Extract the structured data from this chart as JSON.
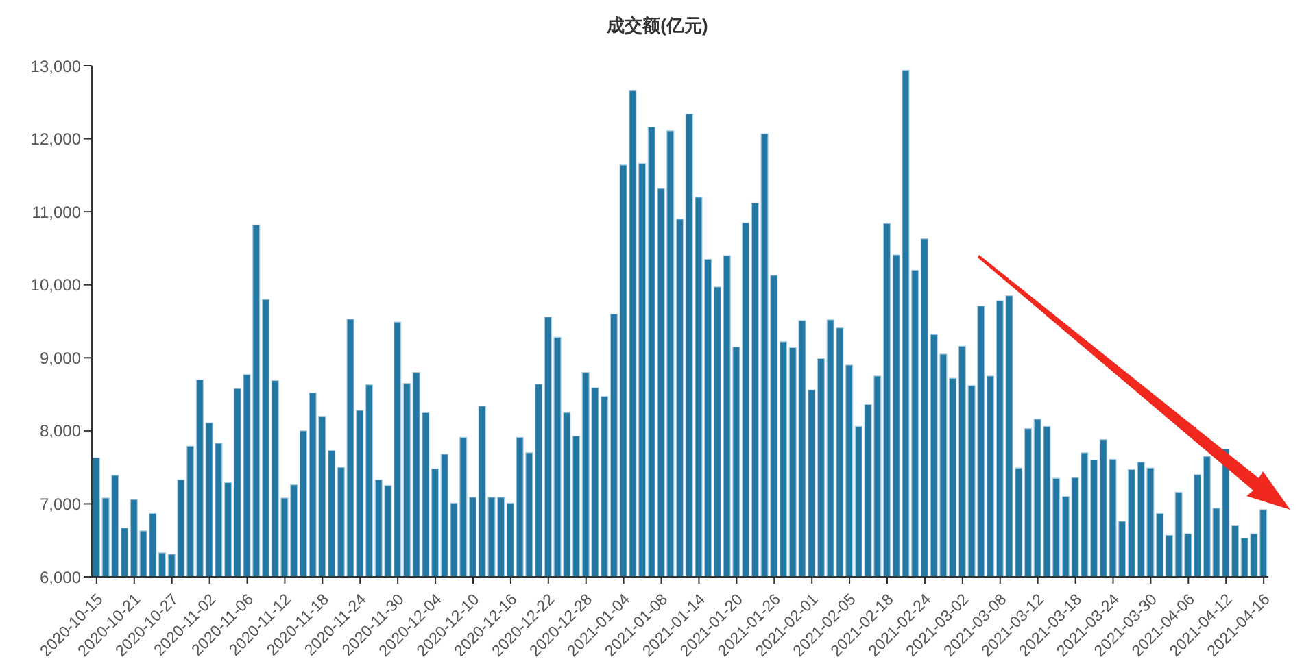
{
  "chart_data": {
    "type": "bar",
    "title": "成交额(亿元)",
    "categories": [
      "2020-10-15",
      null,
      null,
      null,
      "2020-10-21",
      null,
      null,
      null,
      "2020-10-27",
      null,
      null,
      null,
      "2020-11-02",
      null,
      null,
      null,
      "2020-11-06",
      null,
      null,
      null,
      "2020-11-12",
      null,
      null,
      null,
      "2020-11-18",
      null,
      null,
      null,
      "2020-11-24",
      null,
      null,
      null,
      "2020-11-30",
      null,
      null,
      null,
      "2020-12-04",
      null,
      null,
      null,
      "2020-12-10",
      null,
      null,
      null,
      "2020-12-16",
      null,
      null,
      null,
      "2020-12-22",
      null,
      null,
      null,
      "2020-12-28",
      null,
      null,
      null,
      "2021-01-04",
      null,
      null,
      null,
      "2021-01-08",
      null,
      null,
      null,
      "2021-01-14",
      null,
      null,
      null,
      "2021-01-20",
      null,
      null,
      null,
      "2021-01-26",
      null,
      null,
      null,
      "2021-02-01",
      null,
      null,
      null,
      "2021-02-05",
      null,
      null,
      null,
      "2021-02-18",
      null,
      null,
      null,
      "2021-02-24",
      null,
      null,
      null,
      "2021-03-02",
      null,
      null,
      null,
      "2021-03-08",
      null,
      null,
      null,
      "2021-03-12",
      null,
      null,
      null,
      "2021-03-18",
      null,
      null,
      null,
      "2021-03-24",
      null,
      null,
      null,
      "2021-03-30",
      null,
      null,
      null,
      "2021-04-06",
      null,
      null,
      null,
      "2021-04-12",
      null,
      null,
      null,
      "2021-04-16"
    ],
    "values": [
      7630,
      7080,
      7390,
      6670,
      7060,
      6630,
      6870,
      6330,
      6310,
      7330,
      7790,
      8700,
      8110,
      7830,
      7290,
      8580,
      8770,
      10820,
      9800,
      8690,
      7080,
      7260,
      8000,
      8520,
      8200,
      7730,
      7500,
      9530,
      8280,
      8630,
      7330,
      7250,
      9490,
      8650,
      8800,
      8250,
      7480,
      7680,
      7010,
      7910,
      7090,
      8340,
      7090,
      7090,
      7010,
      7910,
      7700,
      8640,
      9560,
      9280,
      8250,
      7930,
      8800,
      8590,
      8470,
      9600,
      11640,
      12660,
      11660,
      12160,
      11320,
      12110,
      10900,
      12340,
      11200,
      10350,
      9970,
      10400,
      9150,
      10850,
      11120,
      12070,
      10130,
      9220,
      9140,
      9510,
      8560,
      8990,
      9520,
      9410,
      8900,
      8060,
      8360,
      8750,
      10840,
      10410,
      12940,
      10200,
      10630,
      9320,
      9050,
      8720,
      9160,
      8620,
      9710,
      8750,
      9780,
      9850,
      7490,
      8030,
      8160,
      8060,
      7350,
      7100,
      7360,
      7700,
      7600,
      7880,
      7610,
      6760,
      7470,
      7570,
      7490,
      6870,
      6570,
      7160,
      6590,
      7400,
      7650,
      6940,
      7750,
      6700,
      6530,
      6590,
      6920
    ],
    "color": "#2278a3",
    "ylim": [
      6000,
      13000
    ],
    "yticks": [
      {
        "value": 6000,
        "label": "6,000"
      },
      {
        "value": 7000,
        "label": "7,000"
      },
      {
        "value": 8000,
        "label": "8,000"
      },
      {
        "value": 9000,
        "label": "9,000"
      },
      {
        "value": 10000,
        "label": "10,000"
      },
      {
        "value": 11000,
        "label": "11,000"
      },
      {
        "value": 12000,
        "label": "12,000"
      },
      {
        "value": 13000,
        "label": "13,000"
      }
    ],
    "grid": false
  }
}
